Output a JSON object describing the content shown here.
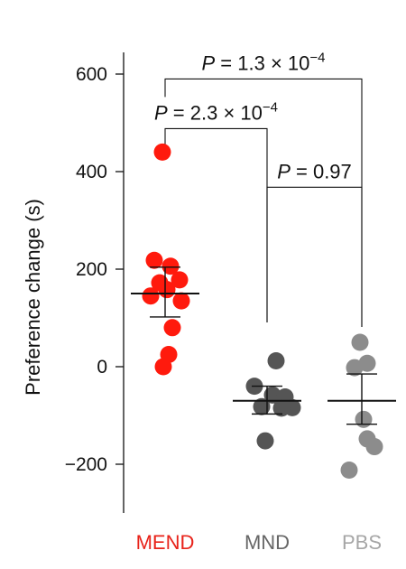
{
  "chart_data": {
    "type": "scatter",
    "ylabel": "Preference change  (s)",
    "ylim": [
      -300,
      650
    ],
    "yticks": [
      600,
      400,
      200,
      0,
      -200
    ],
    "ytick_labels": [
      "600",
      "400",
      "200",
      "0",
      "−200"
    ],
    "categories": [
      "MEND",
      "MND",
      "PBS"
    ],
    "series": [
      {
        "name": "MEND",
        "color": "#ff1a0d",
        "label_color": "#e8231a",
        "points": [
          {
            "dx": -3,
            "y": 440
          },
          {
            "dx": -12,
            "y": 218
          },
          {
            "dx": 6,
            "y": 206
          },
          {
            "dx": -6,
            "y": 172
          },
          {
            "dx": 16,
            "y": 178
          },
          {
            "dx": -16,
            "y": 145
          },
          {
            "dx": 2,
            "y": 158
          },
          {
            "dx": 18,
            "y": 135
          },
          {
            "dx": 8,
            "y": 80
          },
          {
            "dx": 4,
            "y": 25
          },
          {
            "dx": -2,
            "y": 0
          }
        ],
        "mean": 150,
        "err_low": 102,
        "err_high": 204
      },
      {
        "name": "MND",
        "color": "#555555",
        "label_color": "#666666",
        "points": [
          {
            "dx": 10,
            "y": 12
          },
          {
            "dx": -14,
            "y": -40
          },
          {
            "dx": 6,
            "y": -58
          },
          {
            "dx": -6,
            "y": -82
          },
          {
            "dx": 20,
            "y": -62
          },
          {
            "dx": 28,
            "y": -84
          },
          {
            "dx": 16,
            "y": -85
          },
          {
            "dx": -2,
            "y": -152
          }
        ],
        "mean": -70,
        "err_low": -97,
        "err_high": -40
      },
      {
        "name": "PBS",
        "color": "#8c8c8c",
        "label_color": "#a6a6a6",
        "points": [
          {
            "dx": -2,
            "y": 50
          },
          {
            "dx": 6,
            "y": 7
          },
          {
            "dx": -8,
            "y": -2
          },
          {
            "dx": 2,
            "y": -108
          },
          {
            "dx": 6,
            "y": -148
          },
          {
            "dx": 14,
            "y": -164
          },
          {
            "dx": -14,
            "y": -212
          }
        ],
        "mean": -70,
        "err_low": -118,
        "err_high": -15
      }
    ],
    "comparisons": [
      {
        "from": "MEND",
        "to": "PBS",
        "level": 590,
        "p_value": "1.3",
        "p_exponent": "−4"
      },
      {
        "from": "MEND",
        "to": "MND",
        "level": 488,
        "p_value": "2.3",
        "p_exponent": "−4"
      },
      {
        "from": "MND",
        "to": "PBS",
        "level": 368,
        "p_value": "0.97",
        "p_exponent": ""
      }
    ]
  }
}
